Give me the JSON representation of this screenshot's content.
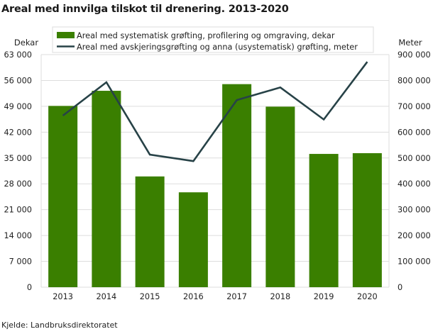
{
  "title": "Areal med innvilga tilskot til drenering. 2013-2020",
  "source": "Kjelde: Landbruksdirektoratet",
  "colors": {
    "bar": "#3a7f00",
    "line": "#274247",
    "grid": "#dddddd"
  },
  "chart_data": {
    "type": "bar+line",
    "title": "Areal med innvilga tilskot til drenering. 2013-2020",
    "categories": [
      "2013",
      "2014",
      "2015",
      "2016",
      "2017",
      "2018",
      "2019",
      "2020"
    ],
    "series": [
      {
        "name": "Areal med systematisk grøfting, profilering og omgraving, dekar",
        "type": "bar",
        "axis": "left",
        "values": [
          49100,
          53200,
          30000,
          25700,
          55000,
          48900,
          36100,
          36300
        ]
      },
      {
        "name": "Areal med avskjeringsgrøfting og anna (usystematisk) grøfting, meter",
        "type": "line",
        "axis": "right",
        "values": [
          664000,
          793000,
          513000,
          488000,
          724000,
          773000,
          649000,
          872000
        ]
      }
    ],
    "left_axis": {
      "label": "Dekar",
      "ylim": [
        0,
        63000
      ],
      "ticks": [
        "0",
        "7 000",
        "14 000",
        "21 000",
        "28 000",
        "35 000",
        "42 000",
        "49 000",
        "56 000",
        "63 000"
      ]
    },
    "right_axis": {
      "label": "Meter",
      "ylim": [
        0,
        900000
      ],
      "ticks": [
        "0",
        "100 000",
        "200 000",
        "300 000",
        "400 000",
        "500 000",
        "600 000",
        "700 000",
        "800 000",
        "900 000"
      ]
    },
    "grid": true,
    "legend_position": "top"
  }
}
